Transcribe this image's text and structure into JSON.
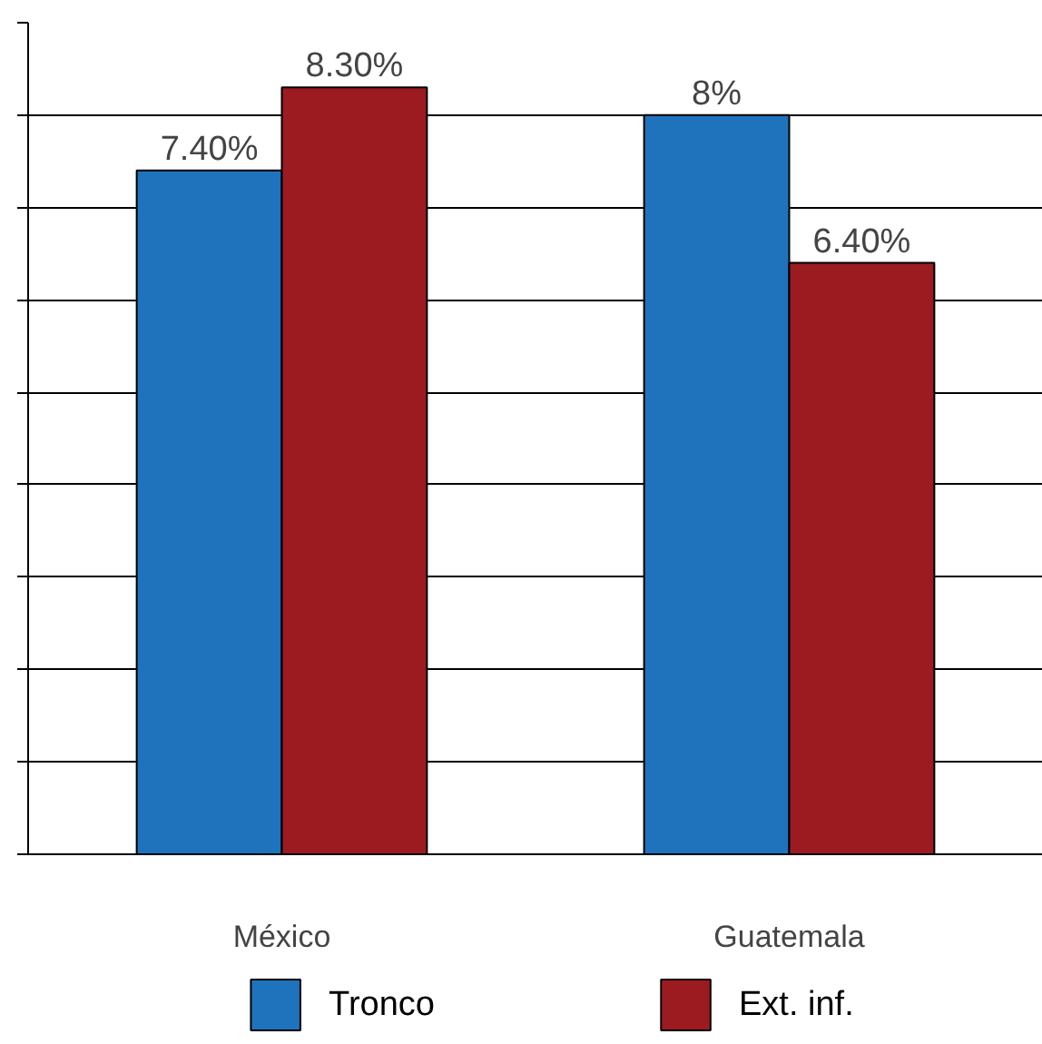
{
  "chart_data": {
    "type": "bar",
    "categories": [
      "México",
      "Guatemala"
    ],
    "series": [
      {
        "name": "Tronco",
        "color": "#1f73bd",
        "values": [
          7.4,
          8
        ],
        "value_labels": [
          "7.40%",
          "8%"
        ]
      },
      {
        "name": "Ext. inf.",
        "color": "#9c1b21",
        "values": [
          8.3,
          6.4
        ],
        "value_labels": [
          "8.30%",
          "6.40%"
        ]
      }
    ],
    "ylim": [
      0,
      9
    ],
    "yticks": [
      {
        "value": 0,
        "label": null
      },
      {
        "value": 1,
        "label": null
      },
      {
        "value": 2,
        "label": null
      },
      {
        "value": 3,
        "label": null
      },
      {
        "value": 4,
        "label": null
      },
      {
        "value": 5,
        "label": null
      },
      {
        "value": 6,
        "label": null
      },
      {
        "value": 7,
        "label": null
      },
      {
        "value": 8,
        "label": null
      },
      {
        "value": 9,
        "label": null
      }
    ],
    "tick_labels": "x",
    "grid": "y",
    "legend": "bottom"
  }
}
